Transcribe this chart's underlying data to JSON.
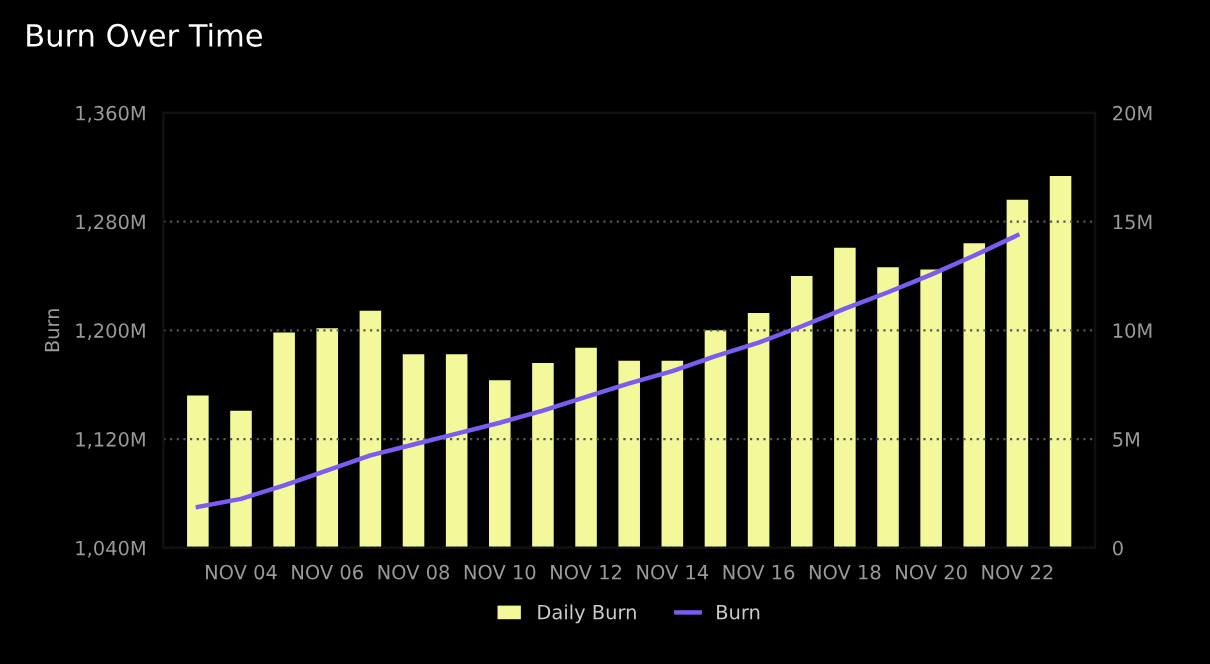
{
  "chart_data": {
    "type": "bar",
    "title": "Burn Over Time",
    "ylabel": "Burn",
    "categories": [
      null,
      "NOV 04",
      null,
      "NOV 06",
      null,
      "NOV 08",
      null,
      "NOV 10",
      null,
      "NOV 12",
      null,
      "NOV 14",
      null,
      "NOV 16",
      null,
      "NOV 18",
      null,
      "NOV 20",
      null,
      "NOV 22",
      null
    ],
    "series": [
      {
        "name": "Daily Burn",
        "axis": "y2",
        "color": "#f3f99a",
        "values": [
          7.0,
          6.3,
          9.9,
          10.1,
          10.9,
          8.9,
          8.9,
          7.7,
          8.5,
          9.2,
          8.6,
          8.6,
          10.0,
          10.8,
          12.5,
          13.8,
          12.9,
          12.8,
          14.0,
          16.0,
          17.1
        ]
      },
      {
        "name": "Burn",
        "type": "line",
        "axis": "y",
        "color": "#7b5cf0",
        "values": [
          1070,
          1076,
          1086,
          1097,
          1108,
          1116,
          1124,
          1132,
          1141,
          1151,
          1161,
          1170,
          1181,
          1191,
          1203,
          1216,
          1228,
          1241,
          1255,
          1270,
          null
        ]
      }
    ],
    "ylim": [
      1040,
      1360
    ],
    "yticks": [
      {
        "value": 1040,
        "label": "1,040M"
      },
      {
        "value": 1120,
        "label": "1,120M"
      },
      {
        "value": 1200,
        "label": "1,200M"
      },
      {
        "value": 1280,
        "label": "1,280M"
      },
      {
        "value": 1360,
        "label": "1,360M"
      }
    ],
    "y2lim": [
      0,
      20
    ],
    "y2ticks": [
      0,
      {
        "value": 5,
        "label": "5M"
      },
      {
        "value": 10,
        "label": "10M"
      },
      {
        "value": 15,
        "label": "15M"
      },
      {
        "value": 20,
        "label": "20M"
      }
    ],
    "grid": "y",
    "legend": "bottom",
    "marker": "none",
    "line_style": "solid"
  }
}
